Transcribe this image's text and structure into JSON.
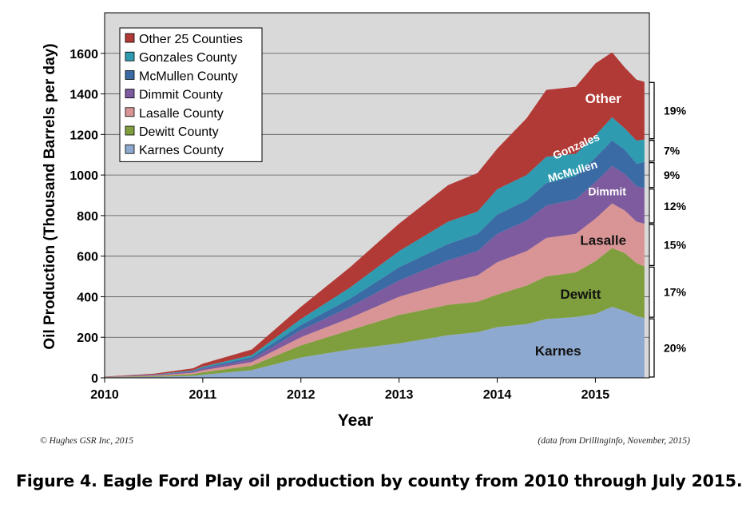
{
  "chart_data": {
    "type": "area",
    "stacked": true,
    "xlabel": "Year",
    "ylabel": "Oil Production (Thousand Barrels per day)",
    "xlim": [
      2010,
      2015.55
    ],
    "ylim": [
      0,
      1800
    ],
    "x_ticks": [
      "2010",
      "2011",
      "2012",
      "2013",
      "2014",
      "2015"
    ],
    "y_ticks": [
      "0",
      "200",
      "400",
      "600",
      "800",
      "1000",
      "1200",
      "1400",
      "1600"
    ],
    "grid": true,
    "legend_position": "top-left",
    "legend_order": [
      "Other 25 Counties",
      "Gonzales County",
      "McMullen County",
      "Dimmit County",
      "Lasalle County",
      "Dewitt County",
      "Karnes County"
    ],
    "x": [
      2010.0,
      2010.5,
      2010.9,
      2011.0,
      2011.5,
      2012.0,
      2012.5,
      2013.0,
      2013.5,
      2013.8,
      2014.0,
      2014.3,
      2014.5,
      2014.8,
      2015.0,
      2015.17,
      2015.3,
      2015.42,
      2015.5
    ],
    "series": [
      {
        "name": "Karnes County",
        "color": "#8ea9cf",
        "label": "Karnes",
        "label_color": "#111111",
        "values": [
          2,
          5,
          10,
          15,
          38,
          100,
          140,
          170,
          210,
          225,
          250,
          265,
          290,
          300,
          315,
          350,
          330,
          305,
          295
        ]
      },
      {
        "name": "Dewitt County",
        "color": "#7f9f3e",
        "label": "Dewitt",
        "label_color": "#111111",
        "values": [
          1,
          3,
          8,
          12,
          22,
          60,
          95,
          140,
          150,
          150,
          160,
          190,
          210,
          220,
          260,
          290,
          285,
          260,
          255
        ]
      },
      {
        "name": "Lasalle County",
        "color": "#d99595",
        "label": "Lasalle",
        "label_color": "#111111",
        "values": [
          1,
          3,
          7,
          10,
          18,
          40,
          60,
          90,
          110,
          130,
          160,
          170,
          190,
          190,
          210,
          220,
          210,
          205,
          210
        ]
      },
      {
        "name": "Dimmit County",
        "color": "#7e5b9e",
        "label": "Dimmit",
        "label_color": "#ffffff",
        "values": [
          1,
          3,
          6,
          8,
          14,
          35,
          55,
          80,
          110,
          120,
          140,
          150,
          160,
          170,
          180,
          185,
          180,
          175,
          175
        ]
      },
      {
        "name": "McMullen County",
        "color": "#3a6ba5",
        "label": "McMullen",
        "label_color": "#ffffff",
        "values": [
          0,
          1,
          3,
          5,
          10,
          25,
          40,
          65,
          80,
          85,
          95,
          100,
          110,
          115,
          120,
          125,
          120,
          110,
          130
        ]
      },
      {
        "name": "Gonzales County",
        "color": "#2f9bb0",
        "label": "Gonzales",
        "label_color": "#ffffff",
        "values": [
          0,
          1,
          3,
          5,
          10,
          30,
          55,
          80,
          110,
          110,
          125,
          125,
          130,
          110,
          110,
          115,
          105,
          115,
          110
        ]
      },
      {
        "name": "Other 25 Counties",
        "color": "#b23a36",
        "label": "Other",
        "label_color": "#ffffff",
        "values": [
          1,
          4,
          10,
          15,
          28,
          60,
          100,
          135,
          180,
          190,
          200,
          280,
          330,
          330,
          355,
          320,
          300,
          300,
          285
        ]
      }
    ],
    "brackets": [
      {
        "label": "20%"
      },
      {
        "label": "17%"
      },
      {
        "label": "15%"
      },
      {
        "label": "12%"
      },
      {
        "label": "9%"
      },
      {
        "label": "7%"
      },
      {
        "label": "19%"
      }
    ]
  },
  "credits": {
    "left": "© Hughes GSR Inc, 2015",
    "right": "(data from Drillinginfo, November, 2015)"
  },
  "caption": "Figure 4. Eagle Ford Play oil production by county from 2010 through July 2015."
}
